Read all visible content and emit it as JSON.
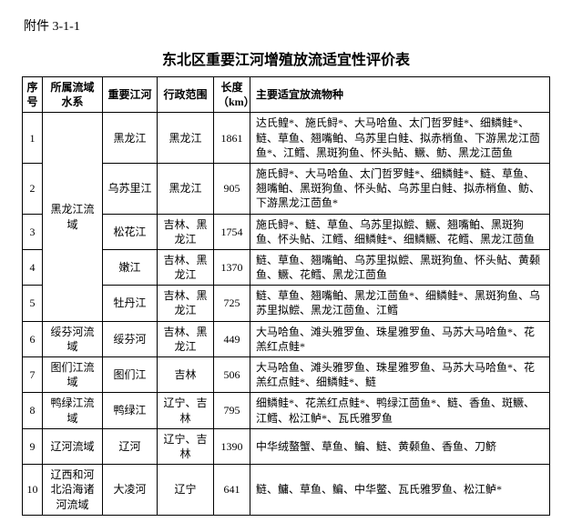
{
  "attachment_label": "附件 3-1-1",
  "title": "东北区重要江河增殖放流适宜性评价表",
  "headers": {
    "seq": "序号",
    "basin": "所属流域水系",
    "river": "重要江河",
    "admin": "行政范围",
    "length": "长度（km）",
    "species": "主要适宜放流物种"
  },
  "rows": [
    {
      "seq": "1",
      "basin": "黑龙江流域",
      "river": "黑龙江",
      "admin": "黑龙江",
      "length": "1861",
      "species": "达氏鳇*、施氏鲟*、大马哈鱼、太门哲罗鲑*、细鳞鲑*、鲢、草鱼、翘嘴鲌、乌苏里白鲑、拟赤梢鱼、下游黑龙江茴鱼*、江鳕、黑斑狗鱼、怀头鲇、鳜、鲂、黑龙江茴鱼"
    },
    {
      "seq": "2",
      "river": "乌苏里江",
      "admin": "黑龙江",
      "length": "905",
      "species": "施氏鲟*、大马哈鱼、太门哲罗鲑*、细鳞鲑*、鲢、草鱼、翘嘴鲌、黑斑狗鱼、怀头鲇、乌苏里白鲑、拟赤梢鱼、鲂、下游黑龙江茴鱼*"
    },
    {
      "seq": "3",
      "river": "松花江",
      "admin": "吉林、黑龙江",
      "length": "1754",
      "species": "施氏鲟*、鲢、草鱼、乌苏里拟鲿、鳜、翘嘴鲌、黑斑狗鱼、怀头鲇、江鳕、细鳞鲑*、细鳞鳜、花鳕、黑龙江茴鱼"
    },
    {
      "seq": "4",
      "river": "嫩江",
      "admin": "吉林、黑龙江",
      "length": "1370",
      "species": "鲢、草鱼、翘嘴鲌、乌苏里拟鲿、黑斑狗鱼、怀头鲇、黄颡鱼、鳜、花鳕、黑龙江茴鱼"
    },
    {
      "seq": "5",
      "river": "牡丹江",
      "admin": "吉林、黑龙江",
      "length": "725",
      "species": "鲢、草鱼、翘嘴鲌、黑龙江茴鱼*、细鳞鲑*、黑斑狗鱼、乌苏里拟鲿、黑龙江茴鱼、江鳕"
    },
    {
      "seq": "6",
      "basin": "绥芬河流域",
      "river": "绥芬河",
      "admin": "吉林、黑龙江",
      "length": "449",
      "species": "大马哈鱼、滩头雅罗鱼、珠星雅罗鱼、马苏大马哈鱼*、花羔红点鲑*"
    },
    {
      "seq": "7",
      "basin": "图们江流域",
      "river": "图们江",
      "admin": "吉林",
      "length": "506",
      "species": "大马哈鱼、滩头雅罗鱼、珠星雅罗鱼、马苏大马哈鱼*、花羔红点鲑*、细鳞鲑*、鲢"
    },
    {
      "seq": "8",
      "basin": "鸭绿江流域",
      "river": "鸭绿江",
      "admin": "辽宁、吉林",
      "length": "795",
      "species": "细鳞鲑*、花羔红点鲑*、鸭绿江茴鱼*、鲢、香鱼、斑鳜、江鳕、松江鲈*、瓦氏雅罗鱼"
    },
    {
      "seq": "9",
      "basin": "辽河流域",
      "river": "辽河",
      "admin": "辽宁、吉林",
      "length": "1390",
      "species": "中华绒螯蟹、草鱼、鳊、鲢、黄颡鱼、香鱼、刀鲚"
    },
    {
      "seq": "10",
      "basin": "辽西和河北沿海诸河流域",
      "river": "大凌河",
      "admin": "辽宁",
      "length": "641",
      "species": "鲢、鳙、草鱼、鳊、中华鳖、瓦氏雅罗鱼、松江鲈*"
    }
  ]
}
